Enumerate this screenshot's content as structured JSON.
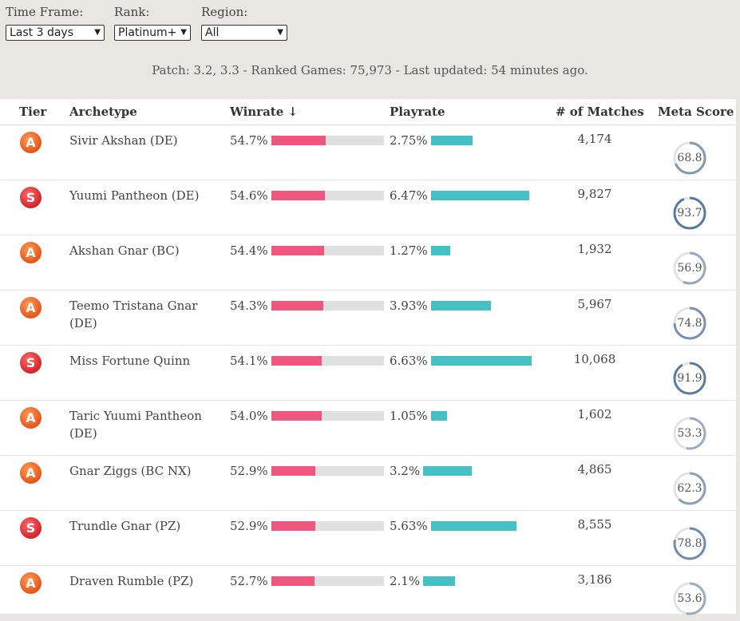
{
  "filters": {
    "time_frame": {
      "label": "Time Frame:",
      "value": "Last 3 days"
    },
    "rank": {
      "label": "Rank:",
      "value": "Platinum+"
    },
    "region": {
      "label": "Region:",
      "value": "All"
    }
  },
  "patch_info": "Patch: 3.2, 3.3 - Ranked Games: 75,973 - Last updated: 54 minutes ago.",
  "columns": {
    "tier": "Tier",
    "archetype": "Archetype",
    "winrate": "Winrate ↓",
    "playrate": "Playrate",
    "matches": "# of Matches",
    "meta_score": "Meta Score"
  },
  "colors": {
    "tier_A": "#e8541a",
    "tier_S": "#d6232a",
    "winrate_bar": "#f0577f",
    "playrate_bar": "#45c1c6",
    "ring": "#4a72a0"
  },
  "rows": [
    {
      "tier": "A",
      "archetype": "Sivir Akshan (DE)",
      "winrate": "54.7%",
      "winrate_value": 54.7,
      "playrate": "2.75%",
      "playrate_value": 2.75,
      "matches": "4,174",
      "meta_score": "68.8"
    },
    {
      "tier": "S",
      "archetype": "Yuumi Pantheon (DE)",
      "winrate": "54.6%",
      "winrate_value": 54.6,
      "playrate": "6.47%",
      "playrate_value": 6.47,
      "matches": "9,827",
      "meta_score": "93.7"
    },
    {
      "tier": "A",
      "archetype": "Akshan Gnar (BC)",
      "winrate": "54.4%",
      "winrate_value": 54.4,
      "playrate": "1.27%",
      "playrate_value": 1.27,
      "matches": "1,932",
      "meta_score": "56.9"
    },
    {
      "tier": "A",
      "archetype": "Teemo Tristana Gnar (DE)",
      "winrate": "54.3%",
      "winrate_value": 54.3,
      "playrate": "3.93%",
      "playrate_value": 3.93,
      "matches": "5,967",
      "meta_score": "74.8"
    },
    {
      "tier": "S",
      "archetype": "Miss Fortune Quinn",
      "winrate": "54.1%",
      "winrate_value": 54.1,
      "playrate": "6.63%",
      "playrate_value": 6.63,
      "matches": "10,068",
      "meta_score": "91.9"
    },
    {
      "tier": "A",
      "archetype": "Taric Yuumi Pantheon (DE)",
      "winrate": "54.0%",
      "winrate_value": 54.0,
      "playrate": "1.05%",
      "playrate_value": 1.05,
      "matches": "1,602",
      "meta_score": "53.3"
    },
    {
      "tier": "A",
      "archetype": "Gnar Ziggs (BC NX)",
      "winrate": "52.9%",
      "winrate_value": 52.9,
      "playrate": "3.2%",
      "playrate_value": 3.2,
      "matches": "4,865",
      "meta_score": "62.3"
    },
    {
      "tier": "S",
      "archetype": "Trundle Gnar (PZ)",
      "winrate": "52.9%",
      "winrate_value": 52.9,
      "playrate": "5.63%",
      "playrate_value": 5.63,
      "matches": "8,555",
      "meta_score": "78.8"
    },
    {
      "tier": "A",
      "archetype": "Draven Rumble (PZ)",
      "winrate": "52.7%",
      "winrate_value": 52.7,
      "playrate": "2.1%",
      "playrate_value": 2.1,
      "matches": "3,186",
      "meta_score": "53.6"
    }
  ]
}
